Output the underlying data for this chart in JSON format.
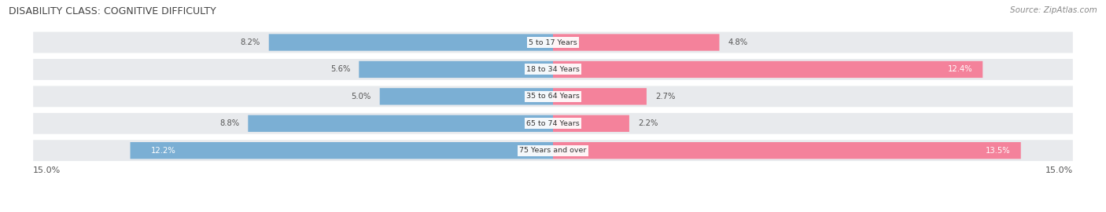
{
  "title": "DISABILITY CLASS: COGNITIVE DIFFICULTY",
  "source": "Source: ZipAtlas.com",
  "categories": [
    "5 to 17 Years",
    "18 to 34 Years",
    "35 to 64 Years",
    "65 to 74 Years",
    "75 Years and over"
  ],
  "male_values": [
    8.2,
    5.6,
    5.0,
    8.8,
    12.2
  ],
  "female_values": [
    4.8,
    12.4,
    2.7,
    2.2,
    13.5
  ],
  "max_val": 15.0,
  "male_color": "#7bafd4",
  "female_color": "#f4829b",
  "bar_bg_color": "#e8eaed",
  "label_inside_color": "#ffffff",
  "label_outside_color": "#555555",
  "inside_threshold_male": 10.0,
  "inside_threshold_female": 10.0,
  "legend_male_color": "#7bafd4",
  "legend_female_color": "#f4829b",
  "title_color": "#444444",
  "source_color": "#888888"
}
